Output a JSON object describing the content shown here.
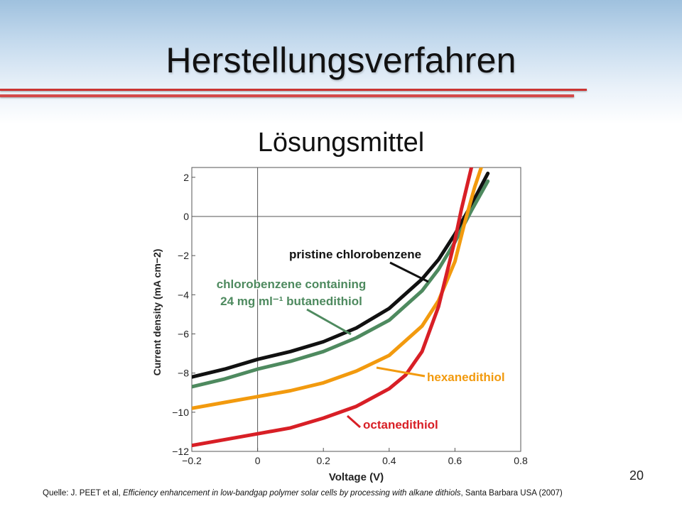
{
  "slide": {
    "title": "Herstellungsverfahren",
    "subtitle": "Lösungsmittel",
    "page_number": "20",
    "source_prefix": "Quelle: J. PEET et al, ",
    "source_title": "Efficiency enhancement in low-bandgap polymer solar cells by processing with alkane dithiols",
    "source_suffix": ", Santa Barbara USA (2007)",
    "accent_color": "#cc3433"
  },
  "chart_data": {
    "type": "line",
    "xlabel": "Voltage (V)",
    "ylabel": "Current density (mA cm−2)",
    "xlim": [
      -0.2,
      0.8
    ],
    "ylim": [
      -12,
      2.5
    ],
    "xticks": [
      -0.2,
      0,
      0.2,
      0.4,
      0.6,
      0.8
    ],
    "xtick_labels": [
      "−0.2",
      "0",
      "0.2",
      "0.4",
      "0.6",
      "0.8"
    ],
    "yticks": [
      -12,
      -10,
      -8,
      -6,
      -4,
      -2,
      0,
      2
    ],
    "ytick_labels": [
      "−12",
      "−10",
      "−8",
      "−6",
      "−4",
      "−2",
      "0",
      "2"
    ],
    "reference_lines": {
      "x": 0,
      "y": 0
    },
    "series": [
      {
        "name": "pristine chlorobenzene",
        "color": "#111111",
        "points": [
          [
            -0.2,
            -8.2
          ],
          [
            -0.1,
            -7.8
          ],
          [
            0,
            -7.3
          ],
          [
            0.1,
            -6.9
          ],
          [
            0.2,
            -6.4
          ],
          [
            0.3,
            -5.7
          ],
          [
            0.4,
            -4.7
          ],
          [
            0.5,
            -3.2
          ],
          [
            0.55,
            -2.2
          ],
          [
            0.6,
            -0.9
          ],
          [
            0.65,
            0.6
          ],
          [
            0.7,
            2.2
          ]
        ]
      },
      {
        "name": "chlorobenzene containing 24 mg ml−1 butanedithiol",
        "color": "#4e8a5f",
        "points": [
          [
            -0.2,
            -8.7
          ],
          [
            -0.1,
            -8.3
          ],
          [
            0,
            -7.8
          ],
          [
            0.1,
            -7.4
          ],
          [
            0.2,
            -6.9
          ],
          [
            0.3,
            -6.2
          ],
          [
            0.4,
            -5.3
          ],
          [
            0.5,
            -3.8
          ],
          [
            0.55,
            -2.7
          ],
          [
            0.6,
            -1.3
          ],
          [
            0.65,
            0.3
          ],
          [
            0.7,
            1.8
          ]
        ]
      },
      {
        "name": "hexanedithiol",
        "color": "#f29a0e",
        "points": [
          [
            -0.2,
            -9.8
          ],
          [
            -0.1,
            -9.5
          ],
          [
            0,
            -9.2
          ],
          [
            0.1,
            -8.9
          ],
          [
            0.2,
            -8.5
          ],
          [
            0.3,
            -7.9
          ],
          [
            0.4,
            -7.1
          ],
          [
            0.5,
            -5.6
          ],
          [
            0.55,
            -4.3
          ],
          [
            0.6,
            -2.3
          ],
          [
            0.63,
            -0.3
          ],
          [
            0.66,
            1.5
          ],
          [
            0.68,
            2.5
          ]
        ]
      },
      {
        "name": "octanedithiol",
        "color": "#d81f26",
        "points": [
          [
            -0.2,
            -11.7
          ],
          [
            -0.1,
            -11.4
          ],
          [
            0,
            -11.1
          ],
          [
            0.1,
            -10.8
          ],
          [
            0.2,
            -10.3
          ],
          [
            0.3,
            -9.7
          ],
          [
            0.4,
            -8.8
          ],
          [
            0.45,
            -8.1
          ],
          [
            0.5,
            -6.9
          ],
          [
            0.55,
            -4.6
          ],
          [
            0.6,
            -1.2
          ],
          [
            0.62,
            0.4
          ],
          [
            0.65,
            2.5
          ]
        ]
      }
    ],
    "annotations": [
      {
        "text": "pristine chlorobenzene",
        "color": "#111111"
      },
      {
        "text": "chlorobenzene containing",
        "color": "#4e8a5f"
      },
      {
        "text": "24 mg ml⁻¹ butanedithiol",
        "color": "#4e8a5f"
      },
      {
        "text": "hexanedithiol",
        "color": "#f29a0e"
      },
      {
        "text": "octanedithiol",
        "color": "#d81f26"
      }
    ]
  }
}
